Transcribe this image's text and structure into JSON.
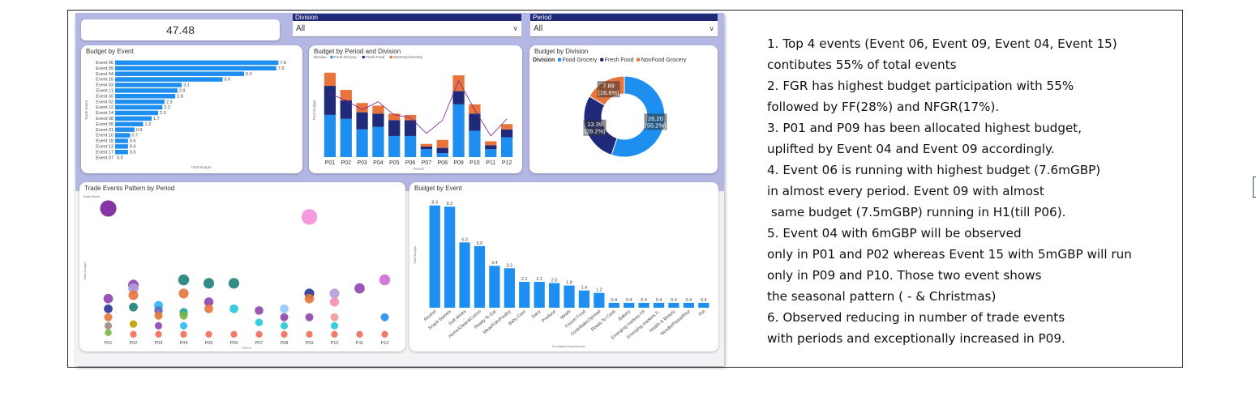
{
  "dashboard": {
    "kpi_value": "47.48",
    "division_slicer": {
      "label": "Division",
      "value": "All"
    },
    "period_slicer": {
      "label": "Period",
      "value": "All"
    }
  },
  "notes": [
    "1. Top 4 events (Event 06, Event 09, Event 04, Event 15)",
    "contibutes 55% of total events",
    "2. FGR has highest budget participation with 55%",
    "followed by FF(28%) and NFGR(17%).",
    "3. P01 and P09 has been allocated highest budget,",
    "uplifted by Event 04 and Event 09 accordingly.",
    "4. Event 06 is running with highest budget (7.6mGBP)",
    "in almost every period. Event 09 with almost",
    " same budget (7.5mGBP) running in H1(till P06).",
    "5. Event 04 with 6mGBP will be observed",
    "only in P01 and P02 whereas Event 15 with 5mGBP will run",
    "only in P09 and P10. Those two event shows",
    "the seasonal pattern ( - & Christmas)",
    "6. Observed reducing in number of trade events",
    "with periods and exceptionally increased in P09."
  ],
  "colors": {
    "bar_blue": "#1f8ef1",
    "dark_navy": "#1f2a7a",
    "orange": "#e8743b",
    "frame": "#222222"
  },
  "chart_data": [
    {
      "type": "bar",
      "orientation": "horizontal",
      "title": "Budget by Event",
      "xlabel": "Total Budget",
      "ylabel": "Trade Event",
      "categories": [
        "Event 06",
        "Event 09",
        "Event 04",
        "Event 15",
        "Event 03",
        "Event 11",
        "Event 16",
        "Event 02",
        "Event 12",
        "Event 14",
        "Event 08",
        "Event 05",
        "Event 01",
        "Event 10",
        "Event 18",
        "Event 13",
        "Event 17",
        "Event 07"
      ],
      "values": [
        7.6,
        7.5,
        6.0,
        5.0,
        3.1,
        2.9,
        2.8,
        2.3,
        2.2,
        2.0,
        1.7,
        1.3,
        0.9,
        0.7,
        0.6,
        0.6,
        0.6,
        0.0
      ],
      "value_labels": [
        "7.6",
        "7.5",
        "6.0",
        "5.0",
        "3.1",
        "2.9",
        "2.8",
        "2.3",
        "2.2",
        "2.0",
        "1.7",
        "1.3",
        "0.9",
        "0.7",
        "0.6",
        "0.6",
        "0.6",
        "0.0"
      ],
      "xlim": [
        0,
        8
      ]
    },
    {
      "type": "bar",
      "stacked": true,
      "title": "Budget by Period and Division",
      "xlabel": "Period",
      "ylabel": "Total Budget",
      "legend_title": "Division",
      "categories": [
        "P01",
        "P02",
        "P03",
        "P04",
        "P05",
        "P06",
        "P07",
        "P08",
        "P09",
        "P10",
        "P11",
        "P12"
      ],
      "series": [
        {
          "name": "Food Grocery",
          "values": [
            3.2,
            2.9,
            2.1,
            2.3,
            1.6,
            1.6,
            0.6,
            0.3,
            4.0,
            2.0,
            0.6,
            1.5
          ]
        },
        {
          "name": "Fresh Food",
          "values": [
            2.2,
            1.4,
            1.3,
            1.0,
            1.2,
            1.2,
            0.2,
            0.4,
            1.0,
            1.3,
            0.3,
            0.6
          ]
        },
        {
          "name": "NonFood Grocery",
          "values": [
            1.0,
            0.8,
            0.7,
            0.6,
            0.5,
            0.4,
            0.2,
            0.6,
            1.2,
            0.7,
            0.3,
            0.4
          ]
        }
      ],
      "line_series": {
        "values": [
          4.8,
          4.3,
          3.6,
          4.2,
          3.2,
          3.0,
          1.8,
          2.8,
          5.8,
          3.6,
          1.6,
          2.9
        ]
      },
      "ylim": [
        0,
        7
      ]
    },
    {
      "type": "pie",
      "donut": true,
      "title": "Budget by Division",
      "legend_title": "Division",
      "legend_position": "top-left",
      "labels": [
        "Food Grocery",
        "Fresh Food",
        "NonFood Grocery"
      ],
      "values": [
        26.2,
        13.39,
        7.89
      ],
      "value_labels": [
        "26.20\n(55.2%)",
        "13.39\n(28.2%)",
        "7.89\n(16.6%)"
      ]
    },
    {
      "type": "scatter",
      "title": "Trade Events Pattern by Period",
      "xlabel": "Period",
      "ylabel": "Total Budget",
      "legend_title": "Trade Event",
      "categories": [
        "P01",
        "P02",
        "P03",
        "P04",
        "P05",
        "P06",
        "P07",
        "P08",
        "P09",
        "P10",
        "P11",
        "P12"
      ],
      "points": [
        {
          "x": "P01",
          "y": 7.6,
          "color": "#7a1f9a"
        },
        {
          "x": "P01",
          "y": 2.3,
          "color": "#8e44ad"
        },
        {
          "x": "P01",
          "y": 1.7,
          "color": "#283593"
        },
        {
          "x": "P01",
          "y": 1.2,
          "color": "#e8743b"
        },
        {
          "x": "P01",
          "y": 0.7,
          "color": "#a1887f"
        },
        {
          "x": "P01",
          "y": 0.3,
          "color": "#7cb342"
        },
        {
          "x": "P02",
          "y": 3.1,
          "color": "#8e44ad"
        },
        {
          "x": "P02",
          "y": 2.9,
          "color": "#b39ddb"
        },
        {
          "x": "P02",
          "y": 2.5,
          "color": "#e8743b"
        },
        {
          "x": "P02",
          "y": 1.8,
          "color": "#1e7f7a"
        },
        {
          "x": "P02",
          "y": 0.8,
          "color": "#c0a000"
        },
        {
          "x": "P02",
          "y": 0.2,
          "color": "#ef6c5a"
        },
        {
          "x": "P03",
          "y": 1.9,
          "color": "#29b6f6"
        },
        {
          "x": "P03",
          "y": 1.6,
          "color": "#5c6bc0"
        },
        {
          "x": "P03",
          "y": 1.3,
          "color": "#e8743b"
        },
        {
          "x": "P03",
          "y": 0.7,
          "color": "#8e44ad"
        },
        {
          "x": "P03",
          "y": 0.2,
          "color": "#ef6c5a"
        },
        {
          "x": "P04",
          "y": 3.4,
          "color": "#1e7f7a"
        },
        {
          "x": "P04",
          "y": 2.6,
          "color": "#e8743b"
        },
        {
          "x": "P04",
          "y": 1.5,
          "color": "#26a69a"
        },
        {
          "x": "P04",
          "y": 1.3,
          "color": "#7cb342"
        },
        {
          "x": "P04",
          "y": 0.7,
          "color": "#29b6f6"
        },
        {
          "x": "P04",
          "y": 0.2,
          "color": "#ef6c5a"
        },
        {
          "x": "P05",
          "y": 3.2,
          "color": "#1e7f7a"
        },
        {
          "x": "P05",
          "y": 2.1,
          "color": "#8e44ad"
        },
        {
          "x": "P05",
          "y": 1.7,
          "color": "#e8743b"
        },
        {
          "x": "P05",
          "y": 0.2,
          "color": "#ef6c5a"
        },
        {
          "x": "P06",
          "y": 3.2,
          "color": "#1e7f7a"
        },
        {
          "x": "P06",
          "y": 1.7,
          "color": "#26c6da"
        },
        {
          "x": "P06",
          "y": 0.2,
          "color": "#ef6c5a"
        },
        {
          "x": "P07",
          "y": 1.6,
          "color": "#8e44ad"
        },
        {
          "x": "P07",
          "y": 0.9,
          "color": "#26c6da"
        },
        {
          "x": "P07",
          "y": 0.2,
          "color": "#ef6c5a"
        },
        {
          "x": "P08",
          "y": 1.7,
          "color": "#90caf9"
        },
        {
          "x": "P08",
          "y": 1.2,
          "color": "#8e44ad"
        },
        {
          "x": "P08",
          "y": 0.7,
          "color": "#26c6da"
        },
        {
          "x": "P08",
          "y": 0.2,
          "color": "#ef6c5a"
        },
        {
          "x": "P09",
          "y": 7.1,
          "color": "#f48fd8"
        },
        {
          "x": "P09",
          "y": 2.6,
          "color": "#283593"
        },
        {
          "x": "P09",
          "y": 2.3,
          "color": "#e8743b"
        },
        {
          "x": "P09",
          "y": 1.2,
          "color": "#8e44ad"
        },
        {
          "x": "P09",
          "y": 0.2,
          "color": "#ef6c5a"
        },
        {
          "x": "P10",
          "y": 2.6,
          "color": "#b39ddb"
        },
        {
          "x": "P10",
          "y": 2.1,
          "color": "#f48fb1"
        },
        {
          "x": "P10",
          "y": 1.2,
          "color": "#ef9a9a"
        },
        {
          "x": "P10",
          "y": 0.7,
          "color": "#26c6da"
        },
        {
          "x": "P10",
          "y": 0.2,
          "color": "#ef6c5a"
        },
        {
          "x": "P11",
          "y": 2.9,
          "color": "#8e44ad"
        },
        {
          "x": "P11",
          "y": 0.2,
          "color": "#ef6c5a"
        },
        {
          "x": "P12",
          "y": 3.4,
          "color": "#ce6ad6"
        },
        {
          "x": "P12",
          "y": 1.2,
          "color": "#1f8ef1"
        },
        {
          "x": "P12",
          "y": 0.2,
          "color": "#ef6c5a"
        }
      ],
      "ylim": [
        0,
        8
      ]
    },
    {
      "type": "bar",
      "title": "Budget by Event",
      "xlabel": "Formatted Department",
      "ylabel": "Total Budget",
      "categories": [
        "Alcohol",
        "Snack Sweets",
        "Soft drinks",
        "Home/Clean&Comm",
        "Ready To Eat",
        "Meat/Fish/Poultry",
        "Baby Care",
        "Dairy",
        "Produce",
        "Meals",
        "Frozen Food",
        "Cook/Bake/Spread",
        "Ready To Cook",
        "Bakery",
        "Emerging markets FF",
        "Emerging markets F..",
        "Health & Beauty",
        "Noodle/Pasta/Rice",
        "Pet"
      ],
      "values": [
        8.3,
        8.2,
        5.3,
        5.0,
        3.4,
        3.2,
        2.1,
        2.1,
        2.0,
        1.8,
        1.4,
        1.2,
        0.4,
        0.4,
        0.4,
        0.4,
        0.4,
        0.4,
        0.4
      ],
      "value_labels": [
        "8.3",
        "8.2",
        "5.3",
        "5.0",
        "3.4",
        "3.2",
        "2.1",
        "2.1",
        "2.0",
        "1.8",
        "1.4",
        "1.2",
        "0.4",
        "0.4",
        "0.4",
        "0.4",
        "0.4",
        "0.4",
        "0.4"
      ],
      "ylim": [
        0,
        9
      ]
    }
  ]
}
